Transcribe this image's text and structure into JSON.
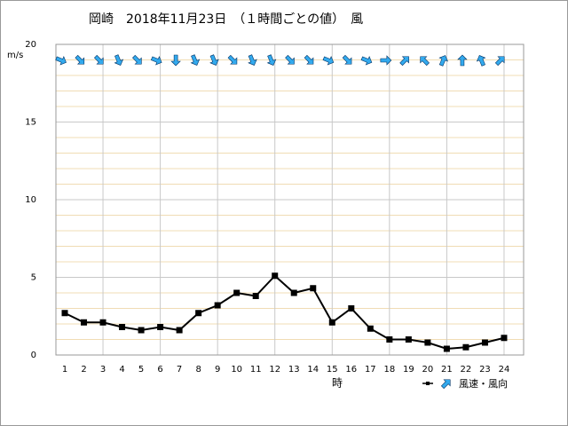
{
  "chart_data": {
    "type": "line",
    "title": "岡崎　2018年11月23日　（１時間ごとの値）　風",
    "y_label": "m/s",
    "x_label": "時",
    "categories": [
      "1",
      "2",
      "3",
      "4",
      "5",
      "6",
      "7",
      "8",
      "9",
      "10",
      "11",
      "12",
      "13",
      "14",
      "15",
      "16",
      "17",
      "18",
      "19",
      "20",
      "21",
      "22",
      "23",
      "24"
    ],
    "series": [
      {
        "name": "風速・風向",
        "color": "#000000",
        "values": [
          2.7,
          2.1,
          2.1,
          1.8,
          1.6,
          1.8,
          1.6,
          2.7,
          3.2,
          4.0,
          3.8,
          5.1,
          4.0,
          4.3,
          2.1,
          3.0,
          1.7,
          1.0,
          1.0,
          0.8,
          0.4,
          0.5,
          0.8,
          1.1
        ],
        "directions": [
          112.5,
          135,
          135,
          157.5,
          135,
          112.5,
          180,
          157.5,
          157.5,
          135,
          157.5,
          157.5,
          135,
          135,
          112.5,
          135,
          112.5,
          90,
          45,
          315,
          22.5,
          0,
          337.5,
          45
        ],
        "arrow_color": "#33aaee"
      }
    ],
    "ylim": [
      0,
      20
    ],
    "yticks": [
      0,
      5,
      10,
      15,
      20
    ],
    "grid": true
  }
}
